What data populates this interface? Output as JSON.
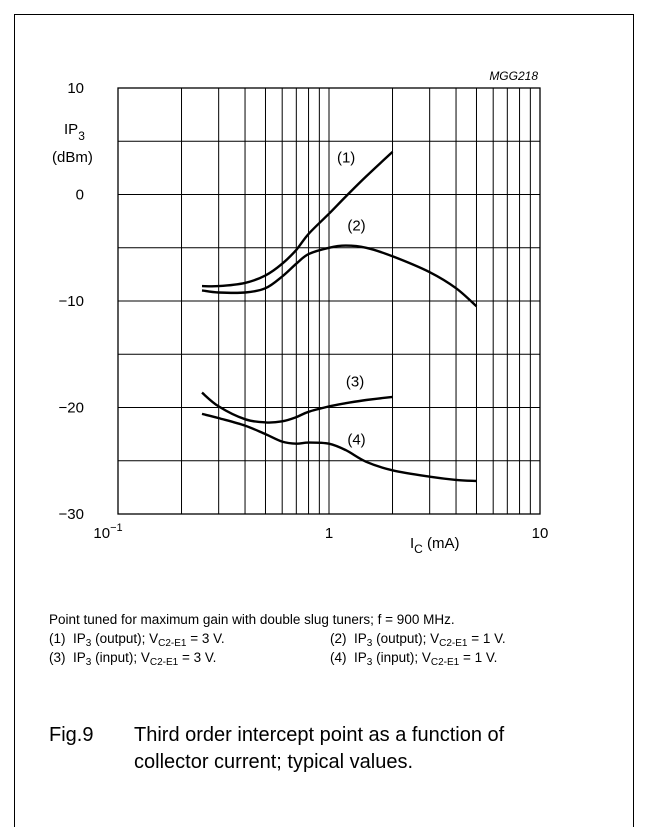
{
  "chart_data": {
    "type": "line",
    "code": "MGG218",
    "xlabel": "I",
    "xlabel_sub": "C",
    "xlabel_unit": " (mA)",
    "ylabel_line1": "IP",
    "ylabel_sub": "3",
    "ylabel_line2": "(dBm)",
    "x_scale": "log",
    "xlim": [
      0.1,
      10
    ],
    "ylim": [
      -30,
      10
    ],
    "x_ticks": [
      {
        "value": 0.1,
        "base": "10",
        "exp": "−1"
      },
      {
        "value": 1,
        "label": "1"
      },
      {
        "value": 10,
        "label": "10"
      }
    ],
    "y_ticks": [
      {
        "value": 10,
        "label": "10"
      },
      {
        "value": 0,
        "label": "0"
      },
      {
        "value": -10,
        "label": "−10"
      },
      {
        "value": -20,
        "label": "−20"
      },
      {
        "value": -30,
        "label": "−30"
      }
    ],
    "grid": true,
    "series": [
      {
        "name": "(1)",
        "points": [
          [
            0.25,
            -8.6
          ],
          [
            0.3,
            -8.6
          ],
          [
            0.4,
            -8.3
          ],
          [
            0.5,
            -7.6
          ],
          [
            0.6,
            -6.5
          ],
          [
            0.7,
            -5.2
          ],
          [
            0.8,
            -3.7
          ],
          [
            1.0,
            -1.8
          ],
          [
            1.2,
            -0.2
          ],
          [
            1.5,
            1.7
          ],
          [
            2.0,
            4.0
          ]
        ]
      },
      {
        "name": "(2)",
        "points": [
          [
            0.25,
            -9.0
          ],
          [
            0.3,
            -9.2
          ],
          [
            0.4,
            -9.2
          ],
          [
            0.5,
            -8.8
          ],
          [
            0.6,
            -7.7
          ],
          [
            0.7,
            -6.5
          ],
          [
            0.8,
            -5.6
          ],
          [
            1.0,
            -5.0
          ],
          [
            1.2,
            -4.8
          ],
          [
            1.5,
            -5.0
          ],
          [
            2.0,
            -5.8
          ],
          [
            3.0,
            -7.3
          ],
          [
            4.0,
            -8.8
          ],
          [
            5.0,
            -10.5
          ]
        ]
      },
      {
        "name": "(3)",
        "points": [
          [
            0.25,
            -18.6
          ],
          [
            0.3,
            -19.9
          ],
          [
            0.4,
            -21.1
          ],
          [
            0.5,
            -21.4
          ],
          [
            0.6,
            -21.3
          ],
          [
            0.7,
            -20.9
          ],
          [
            0.8,
            -20.4
          ],
          [
            1.0,
            -19.9
          ],
          [
            1.2,
            -19.6
          ],
          [
            1.5,
            -19.3
          ],
          [
            2.0,
            -19.0
          ]
        ]
      },
      {
        "name": "(4)",
        "points": [
          [
            0.25,
            -20.6
          ],
          [
            0.3,
            -21.0
          ],
          [
            0.4,
            -21.7
          ],
          [
            0.5,
            -22.5
          ],
          [
            0.6,
            -23.2
          ],
          [
            0.7,
            -23.4
          ],
          [
            0.8,
            -23.3
          ],
          [
            1.0,
            -23.4
          ],
          [
            1.2,
            -24.0
          ],
          [
            1.5,
            -25.1
          ],
          [
            2.0,
            -25.9
          ],
          [
            3.0,
            -26.5
          ],
          [
            4.0,
            -26.8
          ],
          [
            5.0,
            -26.9
          ]
        ]
      }
    ]
  },
  "caption": {
    "note": "Point tuned for maximum gain with double slug tuners; f = 900 MHz.",
    "items": [
      {
        "num": "(1)",
        "a": "IP",
        "a_sub": "3",
        "b": " (output); V",
        "b_sub": "C2-E1",
        "c": " = 3 V."
      },
      {
        "num": "(2)",
        "a": "IP",
        "a_sub": "3",
        "b": " (output); V",
        "b_sub": "C2-E1",
        "c": " = 1 V."
      },
      {
        "num": "(3)",
        "a": "IP",
        "a_sub": "3",
        "b": " (input); V",
        "b_sub": "C2-E1",
        "c": " = 3 V."
      },
      {
        "num": "(4)",
        "a": "IP",
        "a_sub": "3",
        "b": " (input); V",
        "b_sub": "C2-E1",
        "c": " = 1 V."
      }
    ]
  },
  "figure": {
    "number": "Fig.9",
    "title_line1": "Third order intercept point as a function of",
    "title_line2": "collector current; typical values."
  }
}
